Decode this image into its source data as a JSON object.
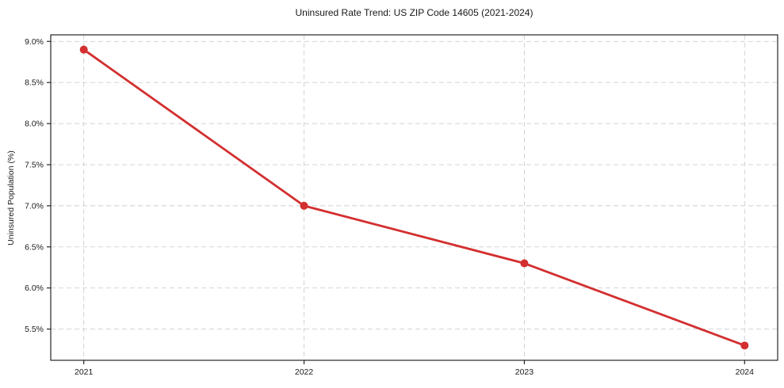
{
  "chart_data": {
    "type": "line",
    "title": "Uninsured Rate Trend: US ZIP Code 14605 (2021-2024)",
    "xlabel": "",
    "ylabel": "Uninsured Population (%)",
    "x": [
      2021,
      2022,
      2023,
      2024
    ],
    "values": [
      8.9,
      7.0,
      6.3,
      5.3
    ],
    "xlim": [
      2020.85,
      2024.15
    ],
    "ylim": [
      5.12,
      9.08
    ],
    "xticks": {
      "values": [
        2021,
        2022,
        2023,
        2024
      ],
      "labels": [
        "2021",
        "2022",
        "2023",
        "2024"
      ]
    },
    "yticks": {
      "values": [
        5.5,
        6.0,
        6.5,
        7.0,
        7.5,
        8.0,
        8.5,
        9.0
      ],
      "labels": [
        "5.5%",
        "6.0%",
        "6.5%",
        "7.0%",
        "7.5%",
        "8.0%",
        "8.5%",
        "9.0%"
      ]
    },
    "grid": true,
    "grid_style": "dashed",
    "legend": false,
    "marker": "circle",
    "colors": {
      "line": "#d32f2f",
      "grid": "#cfcfcf",
      "spine": "#262626",
      "tick_label": "#1a1a1a",
      "background": "#ffffff"
    }
  }
}
